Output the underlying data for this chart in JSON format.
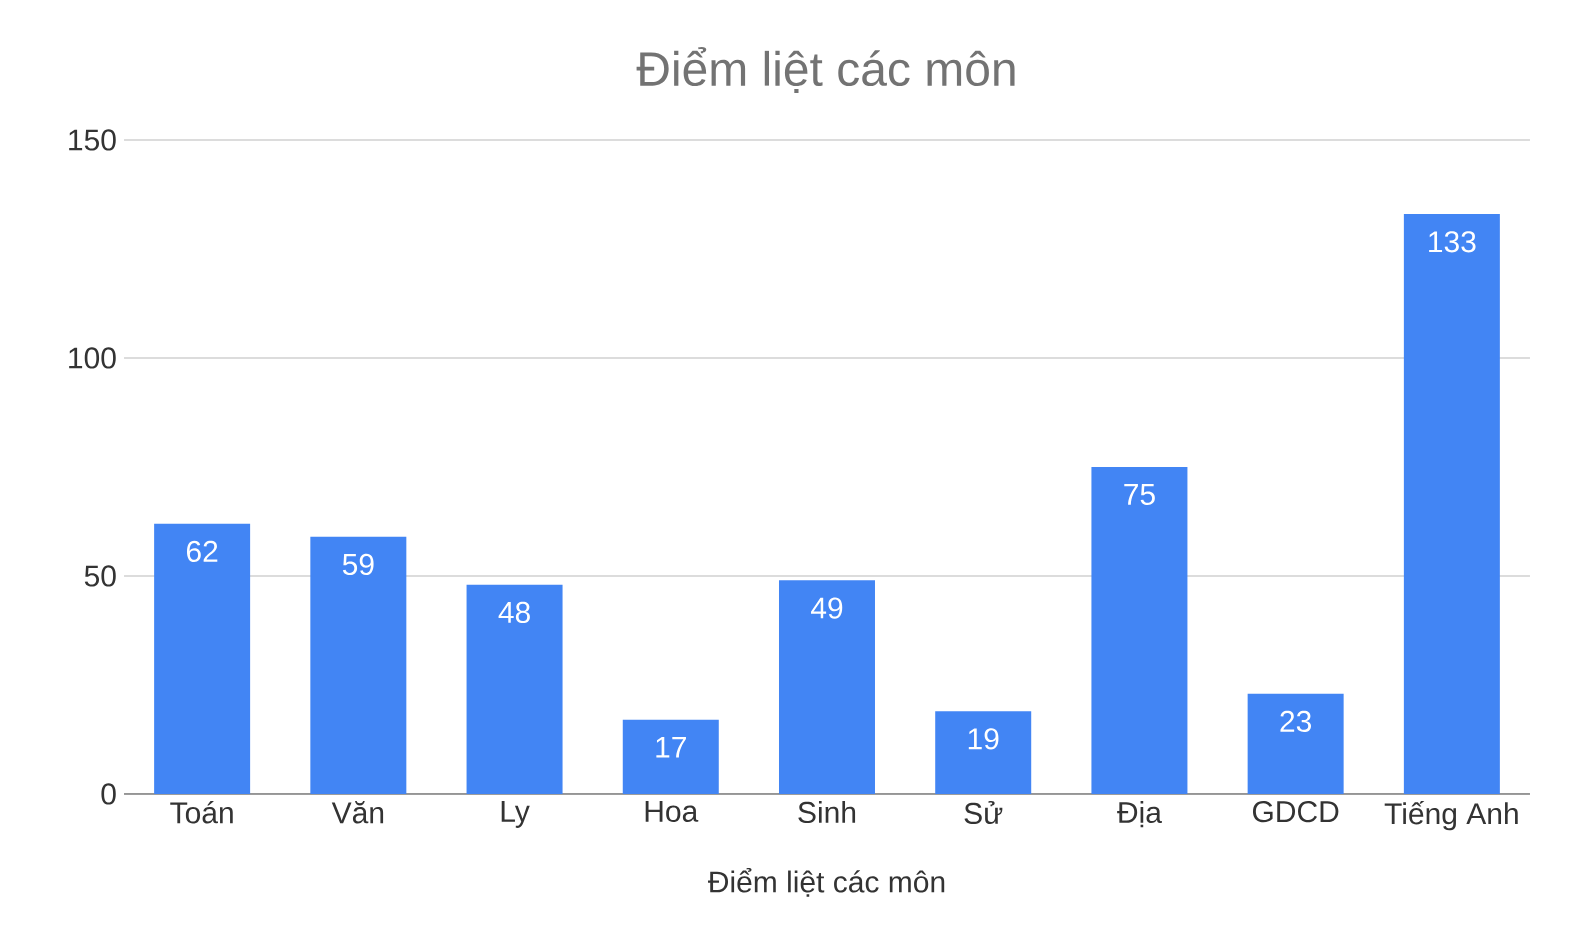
{
  "chart_data": {
    "type": "bar",
    "title": "Điểm liệt các môn",
    "xlabel": "Điểm liệt các môn",
    "categories": [
      "Toán",
      "Văn",
      "Ly",
      "Hoa",
      "Sinh",
      "Sử",
      "Địa",
      "GDCD",
      "Tiếng Anh"
    ],
    "values": [
      62,
      59,
      48,
      17,
      49,
      19,
      75,
      23,
      133
    ],
    "color": "#4285f4",
    "ylim": [
      0,
      150
    ],
    "yticks": [
      0,
      50,
      100,
      150
    ],
    "grid": "y",
    "data_labels": true
  }
}
